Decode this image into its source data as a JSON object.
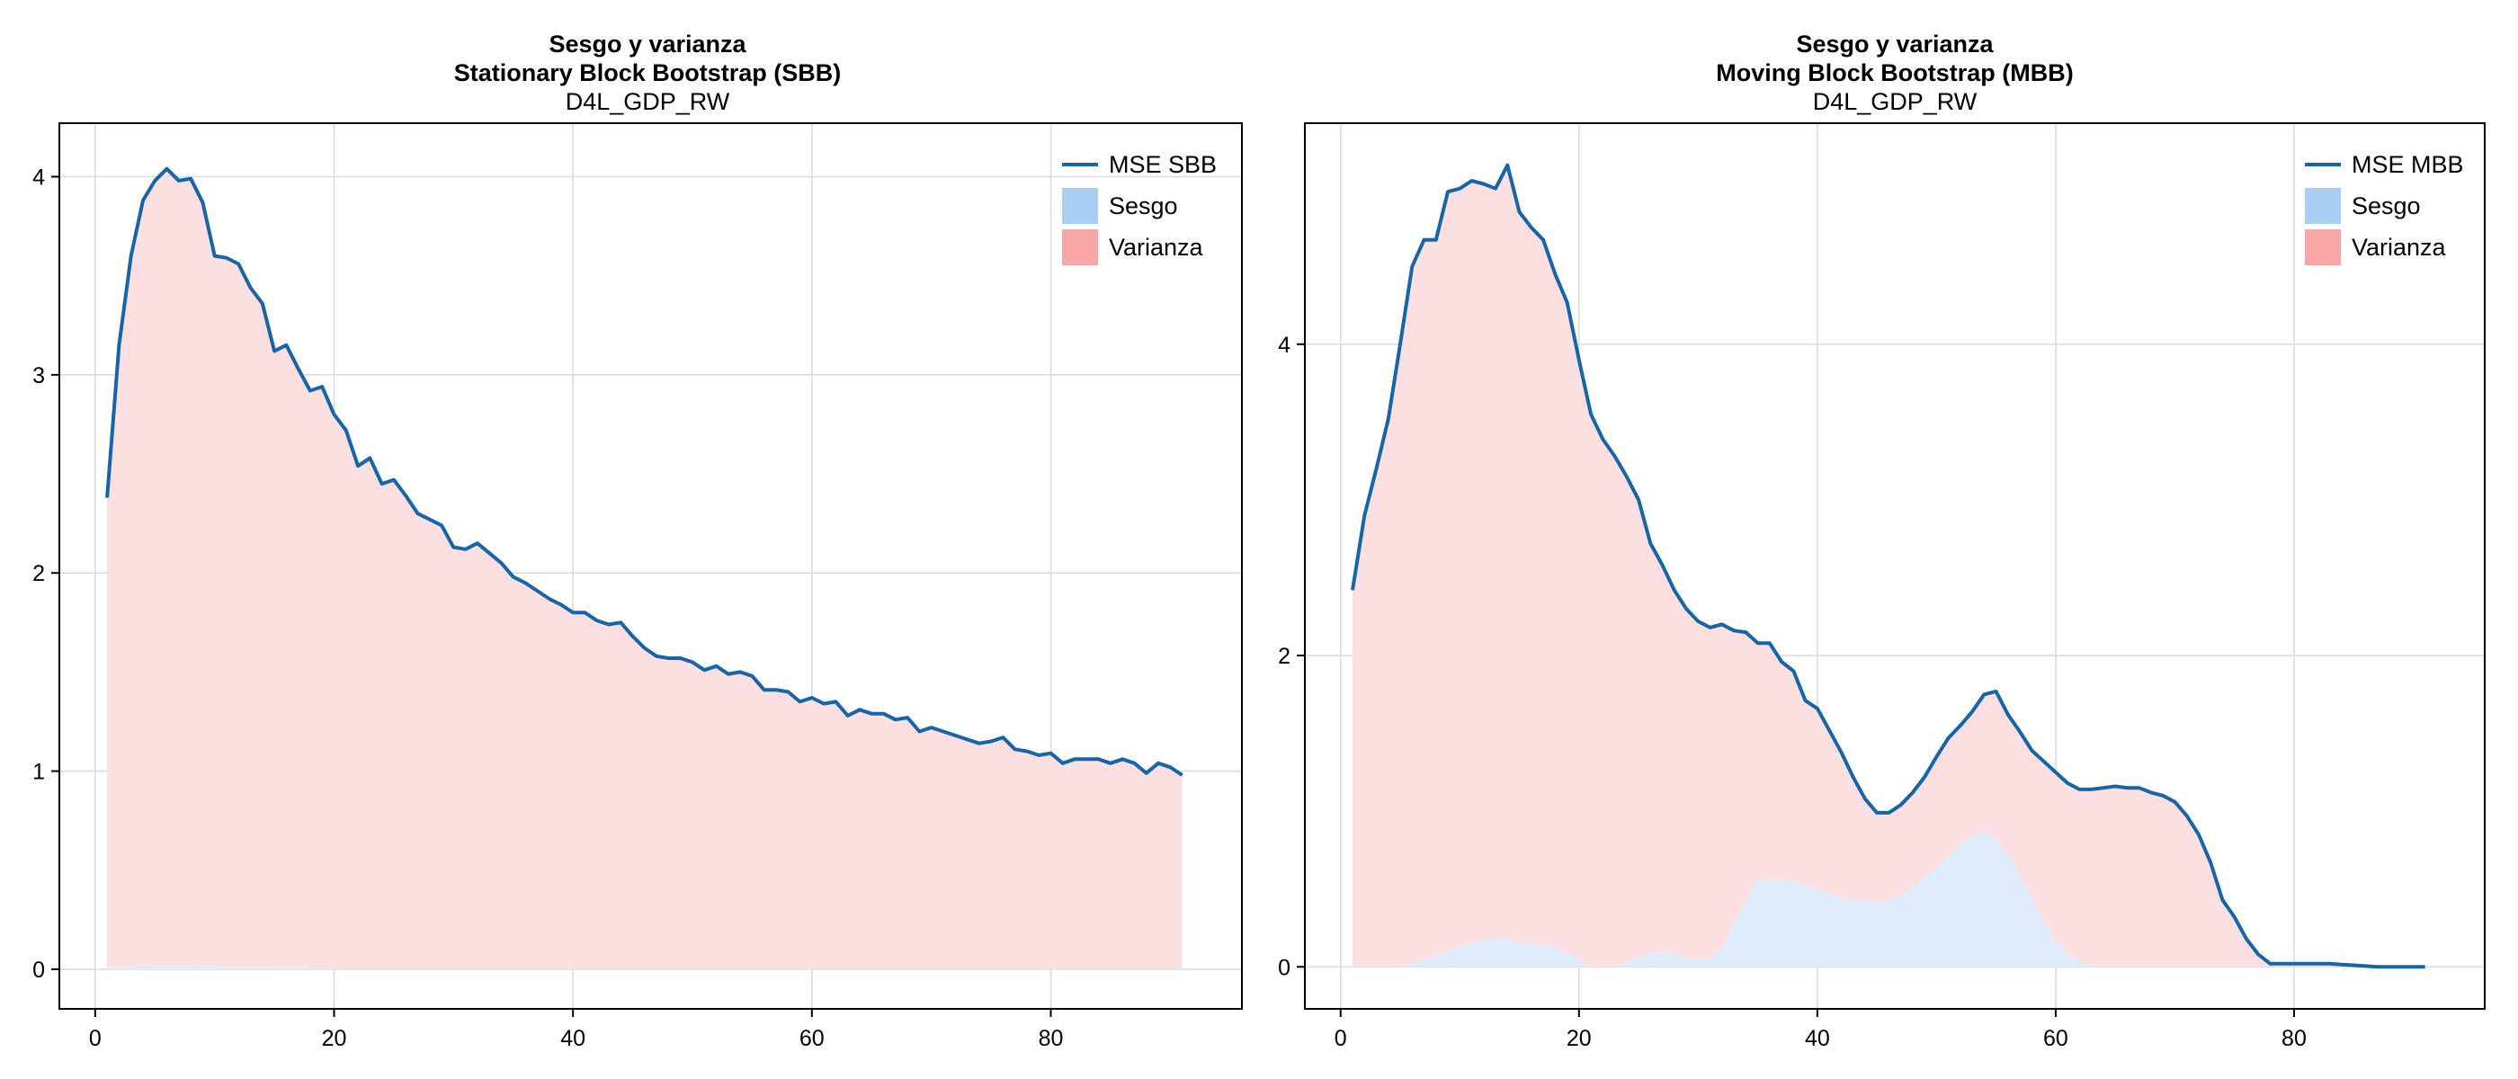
{
  "colors": {
    "mse": "#1565a8",
    "sesgo": "#a8cff3",
    "varianza": "#fba6a6",
    "sesgo_fill": "#dfecfb",
    "varianza_fill": "#fcdfe0"
  },
  "chart_data": [
    {
      "type": "area",
      "title": "Sesgo y varianza",
      "subtitle": "Stationary Block Bootstrap (SBB)",
      "subtitle2": "D4L_GDP_RW",
      "xlabel": "",
      "ylabel": "",
      "xlim": [
        -3,
        96
      ],
      "ylim": [
        -0.2,
        4.27
      ],
      "xticks": [
        0,
        20,
        40,
        60,
        80
      ],
      "yticks": [
        0,
        1,
        2,
        3,
        4
      ],
      "grid": true,
      "legend_position": "top-right",
      "legend": [
        "MSE SBB",
        "Sesgo",
        "Varianza"
      ],
      "x_start": 1,
      "series": [
        {
          "name": "MSE SBB",
          "kind": "line",
          "values": [
            2.38,
            3.15,
            3.6,
            3.88,
            3.98,
            4.04,
            3.98,
            3.99,
            3.87,
            3.6,
            3.59,
            3.56,
            3.44,
            3.36,
            3.12,
            3.15,
            3.03,
            2.92,
            2.94,
            2.8,
            2.72,
            2.54,
            2.58,
            2.45,
            2.47,
            2.39,
            2.3,
            2.27,
            2.24,
            2.13,
            2.12,
            2.15,
            2.1,
            2.05,
            1.98,
            1.95,
            1.91,
            1.87,
            1.84,
            1.8,
            1.8,
            1.76,
            1.74,
            1.75,
            1.68,
            1.62,
            1.58,
            1.57,
            1.57,
            1.55,
            1.51,
            1.53,
            1.49,
            1.5,
            1.48,
            1.41,
            1.41,
            1.4,
            1.35,
            1.37,
            1.34,
            1.35,
            1.28,
            1.31,
            1.29,
            1.29,
            1.26,
            1.27,
            1.2,
            1.22,
            1.2,
            1.18,
            1.16,
            1.14,
            1.15,
            1.17,
            1.11,
            1.1,
            1.08,
            1.09,
            1.04,
            1.06,
            1.06,
            1.06,
            1.04,
            1.06,
            1.04,
            0.99,
            1.04,
            1.02,
            0.98
          ]
        },
        {
          "name": "Sesgo",
          "kind": "area",
          "values": [
            0.01,
            0.01,
            0.015,
            0.02,
            0.02,
            0.02,
            0.02,
            0.02,
            0.02,
            0.015,
            0.015,
            0.015,
            0.015,
            0.015,
            0.01,
            0.01,
            0.01,
            0.01,
            0.005,
            0.005,
            0,
            0,
            0,
            0,
            0,
            0,
            0,
            0,
            0,
            0,
            0,
            0,
            0,
            0,
            0,
            0,
            0,
            0,
            0,
            0,
            0,
            0,
            0,
            0,
            0,
            0,
            0,
            0,
            0,
            0,
            0,
            0,
            0,
            0,
            0,
            0,
            0,
            0,
            0,
            0,
            0,
            0,
            0,
            0,
            0,
            0,
            0,
            0,
            0,
            0,
            0,
            0,
            0,
            0,
            0,
            0,
            0,
            0,
            0,
            0,
            0,
            0,
            0,
            0,
            0,
            0,
            0,
            0,
            0,
            0,
            0
          ]
        }
      ]
    },
    {
      "type": "area",
      "title": "Sesgo y varianza",
      "subtitle": "Moving Block Bootstrap (MBB)",
      "subtitle2": "D4L_GDP_RW",
      "xlabel": "",
      "ylabel": "",
      "xlim": [
        -3,
        96
      ],
      "ylim": [
        -0.27,
        5.42
      ],
      "xticks": [
        0,
        20,
        40,
        60,
        80
      ],
      "yticks": [
        0,
        2,
        4
      ],
      "grid": true,
      "legend_position": "top-right",
      "legend": [
        "MSE MBB",
        "Sesgo",
        "Varianza"
      ],
      "x_start": 1,
      "series": [
        {
          "name": "MSE MBB",
          "kind": "line",
          "values": [
            2.42,
            2.9,
            3.2,
            3.52,
            4.0,
            4.5,
            4.67,
            4.67,
            4.98,
            5.0,
            5.05,
            5.03,
            5.0,
            5.15,
            4.85,
            4.75,
            4.67,
            4.45,
            4.27,
            3.9,
            3.55,
            3.39,
            3.28,
            3.15,
            3.0,
            2.72,
            2.58,
            2.42,
            2.3,
            2.22,
            2.18,
            2.2,
            2.16,
            2.15,
            2.08,
            2.08,
            1.96,
            1.9,
            1.71,
            1.66,
            1.52,
            1.38,
            1.22,
            1.08,
            0.99,
            0.99,
            1.04,
            1.12,
            1.22,
            1.35,
            1.47,
            1.55,
            1.64,
            1.75,
            1.77,
            1.62,
            1.51,
            1.39,
            1.32,
            1.25,
            1.18,
            1.14,
            1.14,
            1.15,
            1.16,
            1.15,
            1.15,
            1.12,
            1.1,
            1.06,
            0.97,
            0.85,
            0.67,
            0.43,
            0.32,
            0.18,
            0.08,
            0.02,
            0.02,
            0.02,
            0.02,
            0.02,
            0.02,
            0.015,
            0.01,
            0.005,
            0.0,
            0.0,
            0.0,
            0.0,
            0.0
          ]
        },
        {
          "name": "Sesgo",
          "kind": "area",
          "values": [
            0,
            0,
            0,
            0,
            0,
            0.02,
            0.04,
            0.07,
            0.1,
            0.13,
            0.15,
            0.17,
            0.18,
            0.18,
            0.16,
            0.15,
            0.14,
            0.12,
            0.09,
            0.04,
            0.0,
            0.0,
            0.0,
            0.03,
            0.06,
            0.09,
            0.1,
            0.08,
            0.06,
            0.04,
            0.05,
            0.12,
            0.28,
            0.42,
            0.56,
            0.57,
            0.56,
            0.55,
            0.52,
            0.5,
            0.47,
            0.44,
            0.43,
            0.43,
            0.42,
            0.43,
            0.46,
            0.51,
            0.57,
            0.64,
            0.71,
            0.78,
            0.84,
            0.87,
            0.82,
            0.72,
            0.58,
            0.43,
            0.29,
            0.17,
            0.08,
            0.03,
            0.01,
            0,
            0,
            0,
            0,
            0,
            0,
            0,
            0,
            0,
            0,
            0,
            0,
            0,
            0,
            0,
            0,
            0,
            0,
            0,
            0,
            0,
            0,
            0,
            0,
            0,
            0,
            0,
            0
          ]
        }
      ]
    }
  ]
}
